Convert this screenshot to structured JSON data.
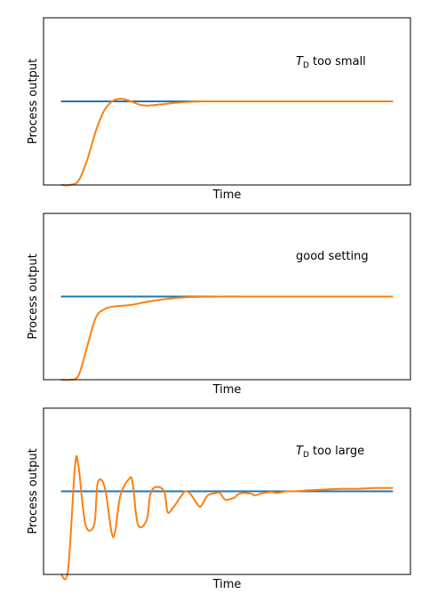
{
  "colors": {
    "setpoint": "#1f77b4",
    "response": "#ff7f0e"
  },
  "chart_data": [
    {
      "type": "line",
      "xlabel": "Time",
      "ylabel": "Process output",
      "annotation": {
        "symbol": "T",
        "subscript": "D",
        "text": " too small"
      },
      "grid": false,
      "ylim": [
        0,
        2
      ],
      "setpoint": {
        "x": [
          0.5,
          10
        ],
        "y": [
          1,
          1
        ]
      },
      "response": {
        "x": [
          0.5,
          0.75,
          1.0,
          1.25,
          1.5,
          1.75,
          2.0,
          2.25,
          2.5,
          2.75,
          3.0,
          3.5,
          4.0,
          4.5,
          5.0,
          6.0,
          7.0,
          8.0,
          9.0,
          10.0
        ],
        "y": [
          0.0,
          0.0,
          0.05,
          0.3,
          0.65,
          0.9,
          1.01,
          1.03,
          1.0,
          0.96,
          0.95,
          0.97,
          0.99,
          1.0,
          1.0,
          1.0,
          1.0,
          1.0,
          1.0,
          1.0
        ]
      }
    },
    {
      "type": "line",
      "xlabel": "Time",
      "ylabel": "Process output",
      "annotation": {
        "symbol": "",
        "subscript": "",
        "text": "good setting"
      },
      "grid": false,
      "ylim": [
        0,
        2
      ],
      "setpoint": {
        "x": [
          0.5,
          10
        ],
        "y": [
          1,
          1
        ]
      },
      "response": {
        "x": [
          0.5,
          0.75,
          1.0,
          1.25,
          1.5,
          1.75,
          2.0,
          2.5,
          3.0,
          3.5,
          4.0,
          5.0,
          6.0,
          7.0,
          8.0,
          9.0,
          10.0
        ],
        "y": [
          0.0,
          0.0,
          0.05,
          0.4,
          0.75,
          0.85,
          0.88,
          0.9,
          0.94,
          0.97,
          0.99,
          1.0,
          1.0,
          1.0,
          1.0,
          1.0,
          1.0
        ]
      }
    },
    {
      "type": "line",
      "xlabel": "Time",
      "ylabel": "Process output",
      "annotation": {
        "symbol": "T",
        "subscript": "D",
        "text": " too large"
      },
      "grid": false,
      "ylim": [
        0,
        2
      ],
      "setpoint": {
        "x": [
          0.5,
          10
        ],
        "y": [
          1,
          1
        ]
      },
      "response": {
        "x": [
          0.5,
          0.7,
          0.9,
          1.0,
          1.2,
          1.45,
          1.55,
          1.75,
          1.95,
          2.05,
          2.2,
          2.45,
          2.55,
          2.7,
          2.95,
          3.05,
          3.2,
          3.45,
          3.55,
          3.7,
          3.95,
          4.05,
          4.2,
          4.45,
          4.55,
          4.7,
          4.95,
          5.05,
          5.2,
          5.45,
          5.55,
          5.7,
          5.95,
          6.05,
          6.2,
          6.45,
          6.55,
          6.7,
          6.95,
          7.2,
          7.5,
          8.0,
          8.5,
          9.0,
          9.5,
          10.0
        ],
        "y": [
          0.0,
          0.05,
          1.3,
          1.3,
          0.6,
          0.6,
          1.1,
          1.05,
          0.5,
          0.52,
          0.95,
          1.15,
          1.1,
          0.6,
          0.65,
          0.95,
          1.05,
          1.0,
          0.75,
          0.8,
          0.95,
          1.0,
          0.97,
          0.82,
          0.85,
          0.95,
          0.98,
          0.98,
          0.9,
          0.92,
          0.96,
          0.98,
          0.97,
          0.95,
          0.97,
          0.99,
          0.99,
          0.98,
          1.0,
          1.0,
          1.01,
          1.02,
          1.03,
          1.03,
          1.04,
          1.04
        ]
      }
    }
  ]
}
